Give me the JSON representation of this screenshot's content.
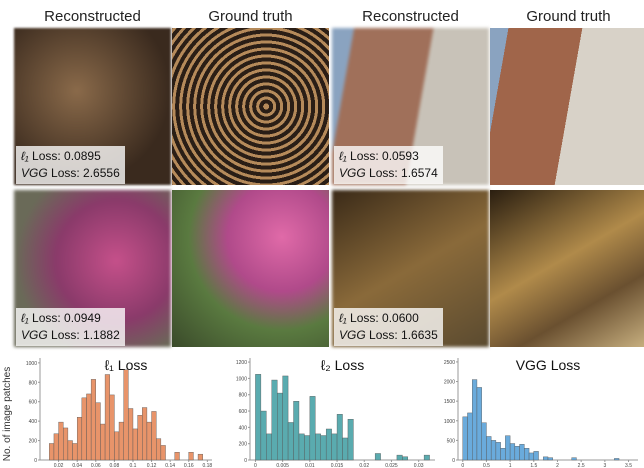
{
  "header": {
    "columns": [
      "Reconstructed",
      "Ground truth",
      "Reconstructed",
      "Ground truth"
    ]
  },
  "metric_names": [
    "ℓ₁",
    "VGG"
  ],
  "loss_word": "Loss:",
  "panels": [
    {
      "l1": "0.0895",
      "vgg": "2.6556"
    },
    {
      "l1": "0.0593",
      "vgg": "1.6574"
    },
    {
      "l1": "0.0949",
      "vgg": "1.1882"
    },
    {
      "l1": "0.0600",
      "vgg": "1.6635"
    }
  ],
  "chart_data": [
    {
      "type": "histogram",
      "title": "ℓ₁ Loss",
      "ylabel": "No. of image patches",
      "color": "#e8946a",
      "bins": [
        0.01,
        0.015,
        0.02,
        0.025,
        0.03,
        0.035,
        0.04,
        0.045,
        0.05,
        0.055,
        0.06,
        0.065,
        0.07,
        0.075,
        0.08,
        0.085,
        0.09,
        0.095,
        0.1,
        0.105,
        0.11,
        0.115,
        0.12,
        0.125,
        0.13,
        0.135,
        0.14,
        0.145,
        0.15,
        0.155,
        0.16,
        0.165,
        0.17,
        0.175
      ],
      "values": [
        170,
        270,
        390,
        330,
        200,
        170,
        440,
        640,
        680,
        830,
        590,
        370,
        880,
        670,
        290,
        390,
        930,
        530,
        320,
        460,
        540,
        390,
        500,
        220,
        150,
        0,
        0,
        80,
        0,
        0,
        80,
        0,
        60
      ],
      "xlim": [
        0,
        0.185
      ],
      "xticks": [
        0.02,
        0.04,
        0.06,
        0.08,
        0.1,
        0.12,
        0.14,
        0.16,
        0.18
      ],
      "ylim": [
        0,
        1050
      ],
      "yticks": [
        0,
        200,
        400,
        600,
        800,
        1000
      ]
    },
    {
      "type": "histogram",
      "title": "ℓ₂ Loss",
      "color": "#5aabaf",
      "bins": [
        0,
        0.001,
        0.002,
        0.003,
        0.004,
        0.005,
        0.006,
        0.007,
        0.008,
        0.009,
        0.01,
        0.011,
        0.012,
        0.013,
        0.014,
        0.015,
        0.016,
        0.017,
        0.018,
        0.019,
        0.02,
        0.021,
        0.022,
        0.023,
        0.024,
        0.025,
        0.026,
        0.027,
        0.028,
        0.029,
        0.03,
        0.031,
        0.032
      ],
      "values": [
        1050,
        600,
        320,
        980,
        820,
        1030,
        460,
        720,
        320,
        300,
        780,
        320,
        300,
        380,
        320,
        560,
        270,
        500,
        0,
        0,
        0,
        0,
        80,
        0,
        0,
        0,
        60,
        40,
        0,
        0,
        0,
        60
      ],
      "xlim": [
        -0.001,
        0.033
      ],
      "xticks": [
        0,
        0.005,
        0.01,
        0.015,
        0.02,
        0.025,
        0.03
      ],
      "ylim": [
        0,
        1250
      ],
      "yticks": [
        0,
        200,
        400,
        600,
        800,
        1000,
        1200
      ]
    },
    {
      "type": "histogram",
      "title": "VGG Loss",
      "color": "#6aabdc",
      "bins": [
        0,
        0.1,
        0.2,
        0.3,
        0.4,
        0.5,
        0.6,
        0.7,
        0.8,
        0.9,
        1,
        1.1,
        1.2,
        1.3,
        1.4,
        1.5,
        1.6,
        1.7,
        1.8,
        1.9,
        2,
        2.1,
        2.2,
        2.3,
        2.4,
        2.5,
        2.6,
        2.7,
        2.8,
        2.9,
        3,
        3.1,
        3.2,
        3.3
      ],
      "values": [
        1100,
        1200,
        2050,
        1850,
        950,
        600,
        500,
        450,
        300,
        620,
        420,
        350,
        400,
        300,
        180,
        220,
        0,
        80,
        60,
        0,
        0,
        0,
        0,
        60,
        0,
        0,
        0,
        0,
        0,
        0,
        0,
        0,
        40
      ],
      "xlim": [
        -0.1,
        3.7
      ],
      "xticks": [
        0,
        0.5,
        1,
        1.5,
        2,
        2.5,
        3,
        3.5
      ],
      "ylim": [
        0,
        2600
      ],
      "yticks": [
        0,
        500,
        1000,
        1500,
        2000,
        2500
      ]
    }
  ]
}
